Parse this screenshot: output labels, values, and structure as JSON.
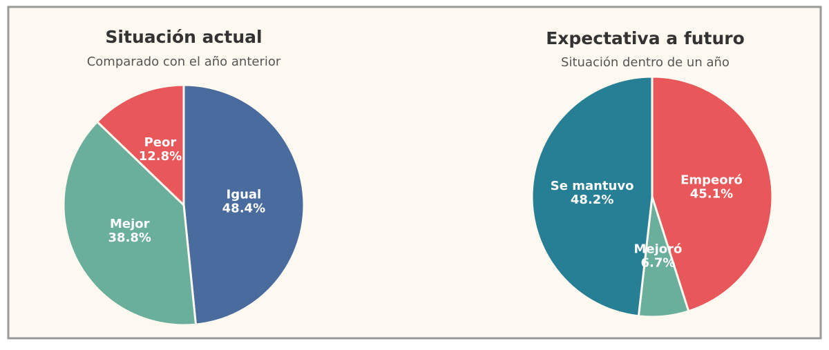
{
  "chart_data": [
    {
      "type": "pie",
      "title": "Situación actual",
      "subtitle": "Comparado con el año anterior",
      "categories": [
        "Igual",
        "Mejor",
        "Peor"
      ],
      "values": [
        48.4,
        38.8,
        12.8
      ],
      "value_labels": [
        "48.4%",
        "38.8%",
        "12.8%"
      ],
      "colors": [
        "#4a6b9e",
        "#6aae9c",
        "#e8575a"
      ]
    },
    {
      "type": "pie",
      "title": "Expectativa a futuro",
      "subtitle": "Situación dentro de un año",
      "categories": [
        "Empeoró",
        "Mejoró",
        "Se mantuvo"
      ],
      "values": [
        45.1,
        6.7,
        48.2
      ],
      "value_labels": [
        "45.1%",
        "6.7%",
        "48.2%"
      ],
      "colors": [
        "#e8575a",
        "#6aae9c",
        "#267f94"
      ]
    }
  ]
}
